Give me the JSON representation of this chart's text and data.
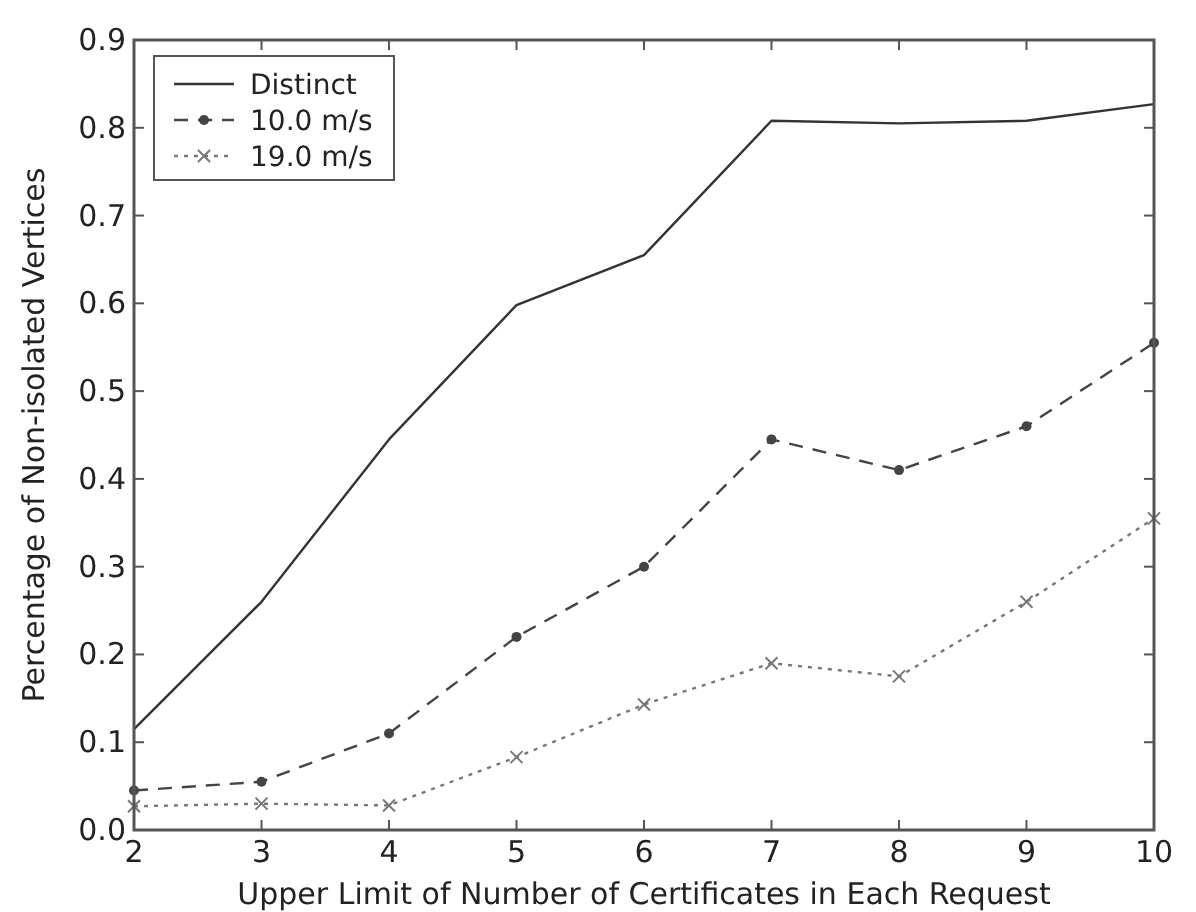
{
  "chart_data": {
    "type": "line",
    "xlabel": "Upper Limit of Number of Certificates in Each Request",
    "ylabel": "Percentage of Non-isolated Vertices",
    "x": [
      2,
      3,
      4,
      5,
      6,
      7,
      8,
      9,
      10
    ],
    "series": [
      {
        "name": "Distinct",
        "color": "#333333",
        "line_style": "solid",
        "marker": "none",
        "values": [
          0.115,
          0.26,
          0.445,
          0.598,
          0.655,
          0.808,
          0.805,
          0.808,
          0.827
        ]
      },
      {
        "name": "10.0 m/s",
        "color": "#444444",
        "line_style": "dashed",
        "marker": "circle",
        "values": [
          0.045,
          0.055,
          0.11,
          0.22,
          0.3,
          0.445,
          0.41,
          0.46,
          0.555
        ]
      },
      {
        "name": "19.0 m/s",
        "color": "#777777",
        "line_style": "dotted",
        "marker": "cross",
        "values": [
          0.027,
          0.03,
          0.028,
          0.083,
          0.143,
          0.19,
          0.175,
          0.26,
          0.355
        ]
      }
    ],
    "xlim": [
      2,
      10
    ],
    "xticks": [
      2,
      3,
      4,
      5,
      6,
      7,
      8,
      9,
      10
    ],
    "ylim": [
      0,
      0.9
    ],
    "yticks": [
      {
        "value": 0,
        "label": "0.0"
      },
      0.1,
      0.2,
      0.3,
      0.4,
      0.5,
      0.6,
      0.7,
      0.8,
      0.9
    ],
    "grid": false,
    "legend": "top left"
  }
}
